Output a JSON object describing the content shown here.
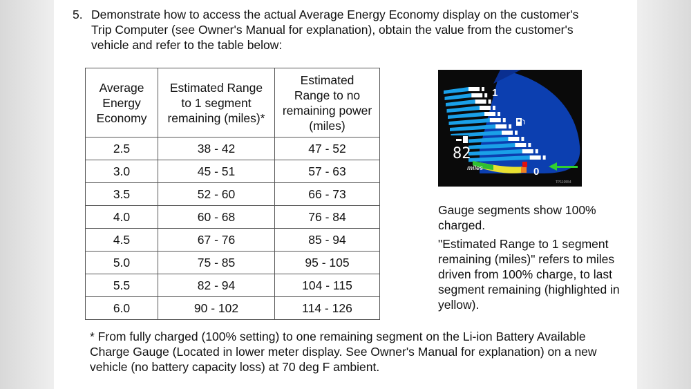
{
  "step": {
    "number": "5.",
    "text": "Demonstrate how to access the actual Average Energy Economy display on the customer's Trip Computer (see Owner's Manual for explanation), obtain the value from the customer's vehicle and refer to the table below:"
  },
  "table": {
    "headers": [
      "Average Energy Economy",
      "Estimated Range to 1 segment remaining (miles)*",
      "Estimated Range to no remaining power (miles)"
    ],
    "rows": [
      [
        "2.5",
        "38 - 42",
        "47 - 52"
      ],
      [
        "3.0",
        "45 - 51",
        "57 - 63"
      ],
      [
        "3.5",
        "52 - 60",
        "66 - 73"
      ],
      [
        "4.0",
        "60 - 68",
        "76 - 84"
      ],
      [
        "4.5",
        "67 - 76",
        "85 - 94"
      ],
      [
        "5.0",
        "75 - 85",
        "95 - 105"
      ],
      [
        "5.5",
        "82 - 94",
        "104 - 115"
      ],
      [
        "6.0",
        "90 - 102",
        "114 - 126"
      ]
    ]
  },
  "gauge": {
    "scale_top": "1",
    "scale_bottom": "0",
    "range_value": "82",
    "range_unit": "miles",
    "image_code": "TP110554",
    "icons": [
      "fuel-pump-icon",
      "arrow-right-icon",
      "green-arrow-left-icon"
    ],
    "colors": {
      "background": "#0a0a0a",
      "panel": "#0c3fb0",
      "segment": "#ffffff",
      "bar": "#1aa0e8",
      "highlight": "#e8e030",
      "low": "#e01010"
    }
  },
  "note": {
    "p1": "Gauge segments show 100% charged.",
    "p2": "\"Estimated Range to 1 segment remaining (miles)\" refers to miles driven from 100% charge, to last segment remaining (highlighted in yellow)."
  },
  "footnote": "* From fully charged (100% setting) to one remaining segment on the Li-ion Battery Available Charge Gauge (Located in lower meter display. See Owner's Manual for explanation) on a new vehicle (no battery capacity loss) at 70 deg F ambient."
}
